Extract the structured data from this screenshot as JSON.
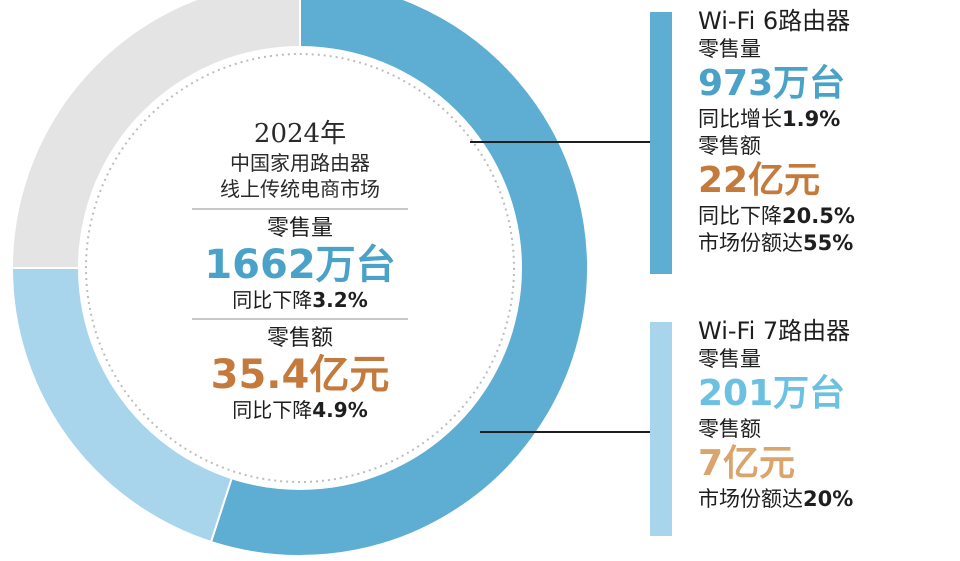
{
  "colors": {
    "wifi6": "#5eaed4",
    "wifi7": "#a8d5eb",
    "other": "#e4e4e4",
    "blue_text": "#4aa2c9",
    "orange_text": "#c47a3c"
  },
  "chart_data": {
    "type": "pie",
    "donut": true,
    "slices": [
      {
        "label": "Wi-Fi 6路由器",
        "value": 55
      },
      {
        "label": "Wi-Fi 7路由器",
        "value": 20
      },
      {
        "value": 25
      }
    ],
    "unit": "%"
  },
  "center": {
    "year": "2024年",
    "line1": "中国家用路由器",
    "line2": "线上传统电商市场",
    "volume_label": "零售量",
    "volume_value": "1662万台",
    "volume_change_prefix": "同比下降",
    "volume_change_value": "3.2%",
    "amount_label": "零售额",
    "amount_value": "35.4亿元",
    "amount_change_prefix": "同比下降",
    "amount_change_value": "4.9%"
  },
  "wifi6": {
    "title": "Wi-Fi 6路由器",
    "volume_label": "零售量",
    "volume_value": "973万台",
    "volume_change_prefix": "同比增长",
    "volume_change_value": "1.9%",
    "amount_label": "零售额",
    "amount_value": "22亿元",
    "amount_change_prefix": "同比下降",
    "amount_change_value": "20.5%",
    "share_prefix": "市场份额达",
    "share_value": "55%"
  },
  "wifi7": {
    "title": "Wi-Fi 7路由器",
    "volume_label": "零售量",
    "volume_value": "201万台",
    "amount_label": "零售额",
    "amount_value": "7亿元",
    "share_prefix": "市场份额达",
    "share_value": "20%"
  }
}
